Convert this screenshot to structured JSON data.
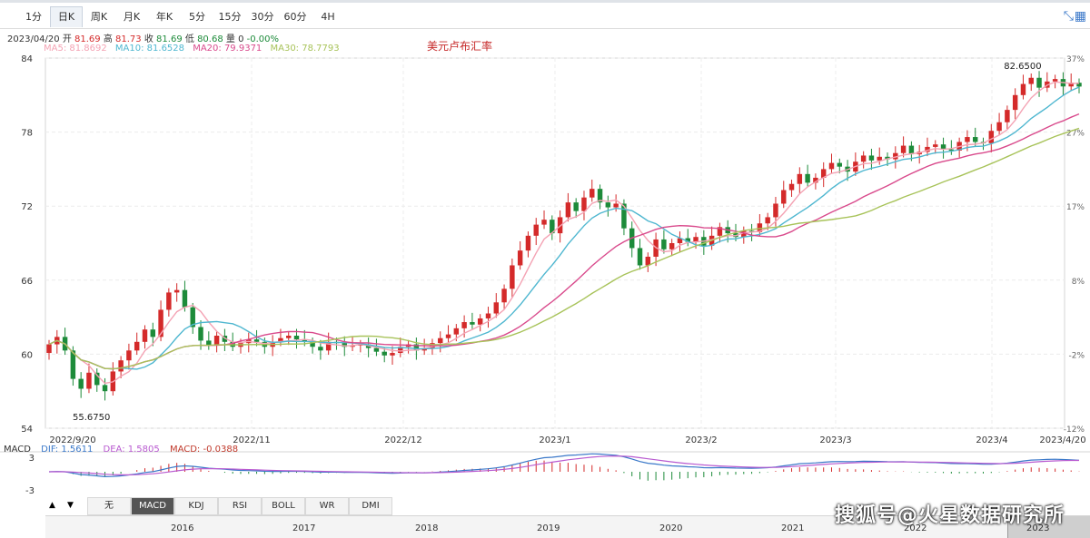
{
  "toolbar": {
    "periods": [
      "1分",
      "日K",
      "周K",
      "月K",
      "年K",
      "5分",
      "15分",
      "30分",
      "60分",
      "4H"
    ],
    "active_period": "日K",
    "fullscreen_icon": "compress-icon"
  },
  "quote": {
    "date": "2023/04/20",
    "open_label": "开",
    "open": "81.69",
    "high_label": "高",
    "high": "81.73",
    "close_label": "收",
    "close": "81.69",
    "low_label": "低",
    "low": "80.68",
    "volume_label": "量",
    "volume": "0",
    "change": "-0.00%"
  },
  "ma_legend": [
    {
      "label": "MA5: 81.8692",
      "color": "#f4a3b4"
    },
    {
      "label": "MA10: 81.6528",
      "color": "#4fb7d0"
    },
    {
      "label": "MA20: 79.9371",
      "color": "#d94a8c"
    },
    {
      "label": "MA30: 78.7793",
      "color": "#a8c35a"
    }
  ],
  "macd_legend": {
    "name": "MACD",
    "dif": "DIF: 1.5611",
    "dea": "DEA: 1.5805",
    "macd": "MACD: -0.0388"
  },
  "indicator_tabs": [
    "无",
    "MACD",
    "KDJ",
    "RSI",
    "BOLL",
    "WR",
    "DMI"
  ],
  "active_indicator": "MACD",
  "navigator_years": [
    "2016",
    "2017",
    "2018",
    "2019",
    "2020",
    "2021",
    "2022",
    "2023"
  ],
  "watermark": "搜狐号@火星数据研究所",
  "colors": {
    "up": "#d42a2a",
    "down": "#1d8b3a",
    "title": "#c62828"
  },
  "chart_data": {
    "type": "candlestick",
    "title": "美元卢布汇率",
    "ylim": [
      54,
      84
    ],
    "y_ticks": [
      "84",
      "78",
      "72",
      "66",
      "60",
      "54"
    ],
    "y_ticks_right": [
      "37%",
      "27%",
      "17%",
      "8%",
      "-2%",
      "-12%"
    ],
    "x_labels": [
      "2022/9/20",
      "2022/11",
      "2022/12",
      "2023/1",
      "2023/2",
      "2023/3",
      "2023/4",
      "2023/4/20"
    ],
    "annotations": {
      "max": "82.6500",
      "min": "55.6750"
    },
    "candles_close": [
      60.8,
      61.4,
      60.3,
      58.0,
      57.2,
      58.5,
      57.5,
      57.0,
      58.6,
      59.5,
      60.3,
      61.0,
      62.0,
      61.4,
      63.6,
      65.0,
      65.2,
      63.8,
      62.2,
      61.1,
      60.7,
      61.5,
      61.0,
      60.6,
      60.9,
      61.2,
      61.0,
      60.6,
      61.0,
      61.3,
      61.5,
      61.2,
      61.0,
      60.6,
      60.3,
      61.0,
      60.9,
      60.6,
      60.7,
      60.8,
      60.5,
      60.2,
      59.9,
      60.1,
      60.6,
      60.8,
      60.3,
      60.5,
      60.9,
      61.3,
      61.6,
      62.1,
      62.6,
      62.4,
      62.9,
      63.3,
      64.2,
      65.3,
      67.2,
      68.4,
      69.6,
      70.5,
      70.9,
      69.8,
      71.1,
      72.3,
      71.6,
      72.7,
      73.4,
      72.3,
      71.9,
      72.2,
      70.2,
      68.6,
      67.2,
      67.9,
      69.3,
      68.5,
      69.0,
      69.4,
      69.1,
      69.5,
      68.8,
      69.6,
      70.3,
      69.8,
      69.5,
      70.0,
      69.9,
      70.6,
      71.1,
      72.2,
      73.3,
      73.8,
      74.6,
      73.9,
      74.3,
      75.0,
      75.5,
      75.2,
      74.8,
      75.6,
      76.1,
      75.7,
      76.0,
      75.8,
      76.3,
      76.9,
      76.2,
      76.4,
      76.8,
      77.0,
      76.6,
      76.5,
      77.2,
      77.6,
      77.2,
      77.1,
      78.1,
      78.8,
      79.8,
      81.0,
      81.9,
      82.4,
      81.6,
      82.1,
      82.3,
      81.7,
      82.0,
      81.69
    ],
    "ma_series": [
      "MA5",
      "MA10",
      "MA20",
      "MA30"
    ],
    "lower_chart": {
      "type": "macd",
      "ylim": [
        -3,
        3
      ],
      "y_ticks": [
        "3",
        "-3"
      ],
      "series": [
        "DIF",
        "DEA",
        "MACD"
      ]
    }
  }
}
